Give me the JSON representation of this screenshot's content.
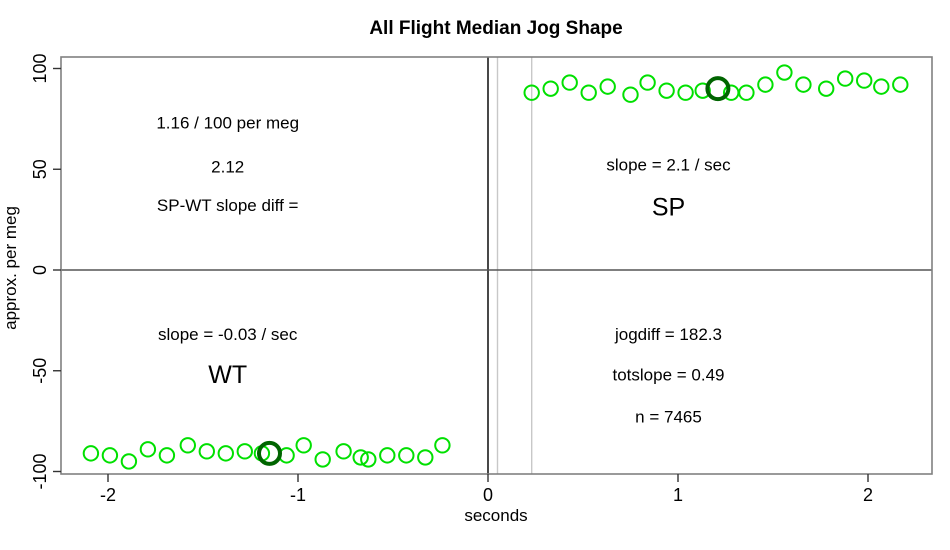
{
  "chart_data": {
    "type": "scatter",
    "title": "All Flight Median Jog Shape",
    "xlabel": "seconds",
    "ylabel": "approx. per meg",
    "xlim": [
      -2.25,
      2.34
    ],
    "ylim": [
      -101,
      106
    ],
    "x_ticks": [
      -2,
      -1,
      0,
      1,
      2
    ],
    "y_ticks": [
      -100,
      -50,
      0,
      50,
      100
    ],
    "grid": false,
    "legend": "none",
    "colors": {
      "point": "#00e000",
      "median_point": "#006400",
      "box": "#808080",
      "zero_line": "#555555",
      "origin_line": "#333333",
      "guide_line": "#c8c8c8"
    },
    "series": [
      {
        "name": "WT",
        "points": [
          [
            -2.09,
            -91
          ],
          [
            -1.99,
            -92
          ],
          [
            -1.89,
            -95
          ],
          [
            -1.79,
            -89
          ],
          [
            -1.69,
            -92
          ],
          [
            -1.58,
            -87
          ],
          [
            -1.48,
            -90
          ],
          [
            -1.38,
            -91
          ],
          [
            -1.28,
            -90
          ],
          [
            -1.19,
            -91
          ],
          [
            -1.06,
            -92
          ],
          [
            -0.97,
            -87
          ],
          [
            -0.87,
            -94
          ],
          [
            -0.76,
            -90
          ],
          [
            -0.67,
            -93
          ],
          [
            -0.63,
            -94
          ],
          [
            -0.53,
            -92
          ],
          [
            -0.43,
            -92
          ],
          [
            -0.33,
            -93
          ],
          [
            -0.24,
            -87
          ]
        ]
      },
      {
        "name": "SP",
        "points": [
          [
            0.23,
            88
          ],
          [
            0.33,
            90
          ],
          [
            0.43,
            93
          ],
          [
            0.53,
            88
          ],
          [
            0.63,
            91
          ],
          [
            0.75,
            87
          ],
          [
            0.84,
            93
          ],
          [
            0.94,
            89
          ],
          [
            1.04,
            88
          ],
          [
            1.13,
            89
          ],
          [
            1.28,
            88
          ],
          [
            1.36,
            88
          ],
          [
            1.46,
            92
          ],
          [
            1.56,
            98
          ],
          [
            1.66,
            92
          ],
          [
            1.78,
            90
          ],
          [
            1.88,
            95
          ],
          [
            1.98,
            94
          ],
          [
            2.07,
            91
          ],
          [
            2.17,
            92
          ]
        ]
      }
    ],
    "median_markers": [
      {
        "series": "WT",
        "x": -1.15,
        "y": -91
      },
      {
        "series": "SP",
        "x": 1.21,
        "y": 90
      }
    ],
    "reference_lines": {
      "horizontal": [
        {
          "y": 0,
          "role": "zero_line"
        }
      ],
      "vertical": [
        {
          "x": 0,
          "role": "origin_line"
        },
        {
          "x": 0.05,
          "role": "guide_line"
        },
        {
          "x": 0.23,
          "role": "guide_line"
        }
      ]
    },
    "annotations": [
      {
        "text": "1.16 / 100 per meg",
        "x": -1.37,
        "y": 73,
        "size": "normal"
      },
      {
        "text": "2.12",
        "x": -1.37,
        "y": 51,
        "size": "normal"
      },
      {
        "text": "SP-WT slope diff =",
        "x": -1.37,
        "y": 32,
        "size": "normal"
      },
      {
        "text": "slope = 2.1 / sec",
        "x": 0.95,
        "y": 52,
        "size": "normal"
      },
      {
        "text": "SP",
        "x": 0.95,
        "y": 31,
        "size": "large"
      },
      {
        "text": "slope = -0.03 / sec",
        "x": -1.37,
        "y": -32,
        "size": "normal"
      },
      {
        "text": "WT",
        "x": -1.37,
        "y": -52,
        "size": "large"
      },
      {
        "text": "jogdiff = 182.3",
        "x": 0.95,
        "y": -32,
        "size": "normal"
      },
      {
        "text": "totslope = 0.49",
        "x": 0.95,
        "y": -52,
        "size": "normal"
      },
      {
        "text": "n = 7465",
        "x": 0.95,
        "y": -73,
        "size": "normal"
      }
    ]
  }
}
